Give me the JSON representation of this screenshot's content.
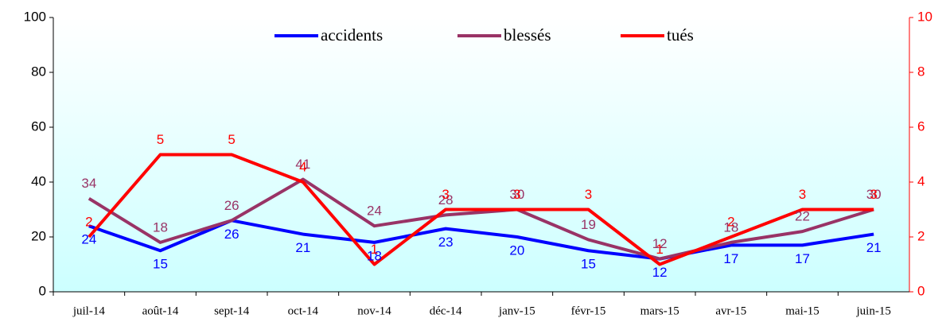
{
  "chart_data": {
    "type": "line",
    "categories": [
      "juil-14",
      "août-14",
      "sept-14",
      "oct-14",
      "nov-14",
      "déc-14",
      "janv-15",
      "févr-15",
      "mars-15",
      "avr-15",
      "mai-15",
      "juin-15"
    ],
    "series": [
      {
        "name": "accidents",
        "color": "#0000ff",
        "values": [
          24,
          15,
          26,
          21,
          18,
          23,
          20,
          15,
          12,
          17,
          17,
          21
        ]
      },
      {
        "name": "blessés",
        "color": "#993366",
        "values": [
          34,
          18,
          26,
          41,
          24,
          28,
          30,
          19,
          12,
          18,
          22,
          30
        ]
      },
      {
        "name": "tués",
        "color": "#ff0000",
        "axis": "y2",
        "values": [
          2,
          5,
          5,
          4,
          1,
          3,
          3,
          3,
          1,
          2,
          3,
          3
        ]
      }
    ],
    "ylim": [
      0,
      100
    ],
    "yticks": [
      0,
      20,
      40,
      60,
      80,
      100
    ],
    "y2lim": [
      0,
      10
    ],
    "y2ticks": [
      0,
      2,
      4,
      6,
      8,
      10
    ],
    "legend": "top"
  }
}
